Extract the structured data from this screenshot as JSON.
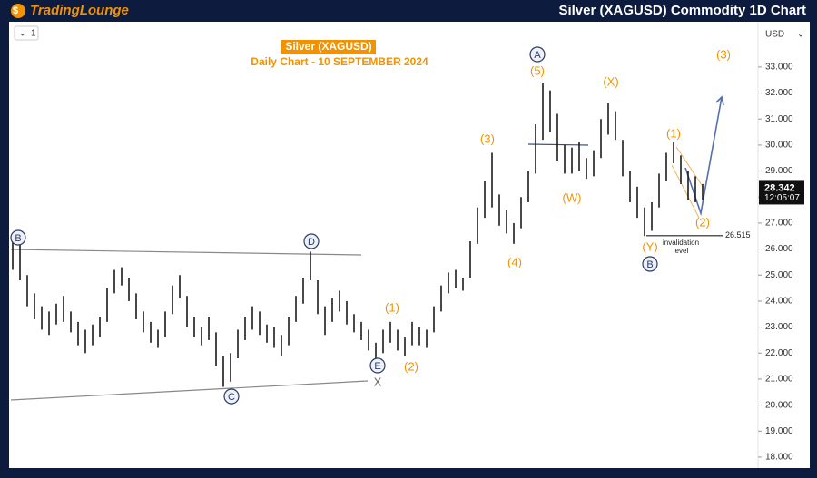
{
  "header": {
    "logo": "TradingLounge",
    "title": "Silver (XAGUSD) Commodity 1D Chart"
  },
  "toolbar": {
    "interval": "1",
    "currency": "USD"
  },
  "chart_data": {
    "type": "ohlc",
    "title": "Silver (XAGUSD)",
    "subtitle": "Daily Chart - 10 SEPTEMBER 2024",
    "color": "#1b1b1b",
    "high": [
      26.3,
      26.2,
      25.0,
      24.3,
      23.8,
      23.6,
      23.9,
      24.2,
      23.6,
      23.2,
      22.9,
      23.1,
      23.4,
      24.5,
      25.2,
      25.3,
      24.9,
      24.3,
      23.6,
      23.2,
      22.9,
      23.6,
      24.6,
      25.0,
      24.2,
      23.4,
      23.0,
      23.4,
      22.8,
      21.9,
      22.0,
      22.9,
      23.4,
      23.8,
      23.6,
      23.1,
      23.0,
      22.7,
      23.4,
      24.2,
      24.9,
      25.9,
      24.8,
      23.8,
      24.1,
      24.4,
      24.0,
      23.5,
      23.2,
      22.9,
      22.4,
      22.9,
      23.2,
      22.9,
      22.6,
      23.2,
      23.0,
      22.9,
      23.8,
      24.6,
      25.1,
      25.2,
      24.9,
      26.3,
      27.6,
      28.6,
      29.7,
      28.1,
      27.5,
      27.0,
      28.0,
      29.0,
      30.8,
      32.4,
      32.1,
      31.2,
      30.0,
      29.9,
      30.1,
      29.5,
      29.8,
      31.0,
      31.6,
      31.3,
      30.2,
      29.0,
      28.4,
      27.6,
      27.8,
      28.9,
      29.7,
      30.1,
      29.6,
      29.0,
      28.8,
      28.5
    ],
    "low": [
      25.2,
      24.8,
      23.8,
      23.3,
      22.9,
      22.7,
      23.1,
      23.2,
      22.8,
      22.3,
      22.0,
      22.3,
      22.6,
      23.2,
      24.3,
      24.6,
      24.0,
      23.3,
      22.8,
      22.4,
      22.2,
      22.6,
      23.5,
      24.1,
      23.0,
      22.6,
      22.3,
      22.5,
      21.5,
      20.7,
      20.9,
      21.8,
      22.5,
      22.9,
      22.7,
      22.4,
      22.2,
      21.9,
      22.3,
      23.2,
      23.9,
      24.8,
      23.5,
      22.7,
      23.2,
      23.6,
      23.1,
      22.8,
      22.5,
      22.1,
      21.7,
      22.0,
      22.4,
      22.1,
      21.9,
      22.3,
      22.3,
      22.2,
      22.8,
      23.6,
      24.3,
      24.5,
      24.4,
      24.9,
      26.2,
      27.2,
      27.6,
      26.9,
      26.6,
      26.2,
      26.8,
      27.8,
      28.9,
      30.2,
      30.5,
      29.4,
      28.9,
      28.9,
      29.0,
      28.7,
      28.8,
      29.5,
      30.4,
      30.2,
      28.8,
      27.8,
      27.2,
      26.5,
      26.7,
      27.6,
      28.6,
      29.3,
      28.5,
      27.9,
      27.8,
      27.9
    ],
    "ylim": [
      17.58,
      34.74
    ],
    "yticks": [
      {
        "value": 18,
        "label": "18.000"
      },
      {
        "value": 19,
        "label": "19.000"
      },
      {
        "value": 20,
        "label": "20.000"
      },
      {
        "value": 21,
        "label": "21.000"
      },
      {
        "value": 22,
        "label": "22.000"
      },
      {
        "value": 23,
        "label": "23.000"
      },
      {
        "value": 24,
        "label": "24.000"
      },
      {
        "value": 25,
        "label": "25.000"
      },
      {
        "value": 26,
        "label": "26.000"
      },
      {
        "value": 27,
        "label": "27.000"
      },
      {
        "value": 28,
        "label": "28.000"
      },
      {
        "value": 29,
        "label": "29.000"
      },
      {
        "value": 30,
        "label": "30.000"
      },
      {
        "value": 31,
        "label": "31.000"
      },
      {
        "value": 32,
        "label": "32.000"
      },
      {
        "value": 33,
        "label": "33.000"
      }
    ],
    "current_price": 28.342,
    "price_timer": "12:05:07",
    "invalidation": {
      "value": 26.515,
      "text": [
        "invalidation",
        "level"
      ]
    },
    "wave_labels": [
      "(3)",
      "A",
      "(5)",
      "(X)",
      "(3)",
      "(1)",
      "(W)",
      "(4)",
      "(2)",
      "(Y)",
      "B",
      "B",
      "D",
      "(1)",
      "E",
      "(2)",
      "X",
      "C"
    ]
  }
}
